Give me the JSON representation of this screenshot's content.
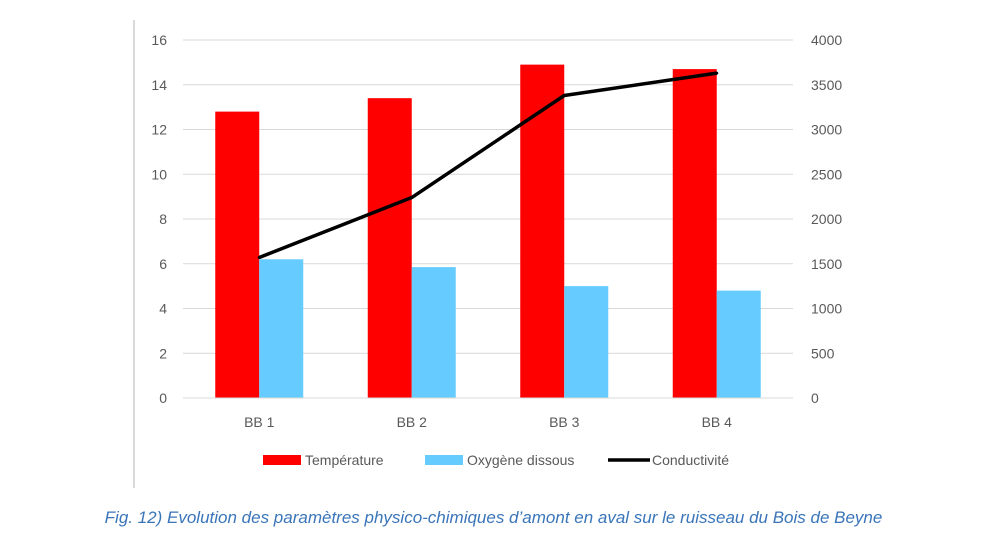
{
  "chart_data": {
    "type": "bar",
    "categories": [
      "BB 1",
      "BB 2",
      "BB 3",
      "BB 4"
    ],
    "series": [
      {
        "name": "Température",
        "type": "bar",
        "axis": "left",
        "color": "#ff0000",
        "values": [
          12.8,
          13.4,
          14.9,
          14.7
        ]
      },
      {
        "name": "Oxygène dissous",
        "type": "bar",
        "axis": "left",
        "color": "#66ccff",
        "values": [
          6.2,
          5.85,
          5.0,
          4.8
        ]
      },
      {
        "name": "Conductivité",
        "type": "line",
        "axis": "right",
        "color": "#000000",
        "values": [
          1570,
          2240,
          3380,
          3630
        ]
      }
    ],
    "y_left": {
      "min": 0,
      "max": 16,
      "ticks": [
        0,
        2,
        4,
        6,
        8,
        10,
        12,
        14,
        16
      ]
    },
    "y_right": {
      "min": 0,
      "max": 4000,
      "ticks": [
        0,
        500,
        1000,
        1500,
        2000,
        2500,
        3000,
        3500,
        4000
      ]
    },
    "grid": true,
    "legend_position": "bottom"
  },
  "caption": "Fig. 12) Evolution des paramètres physico-chimiques d’amont en aval sur le ruisseau du Bois de Beyne"
}
